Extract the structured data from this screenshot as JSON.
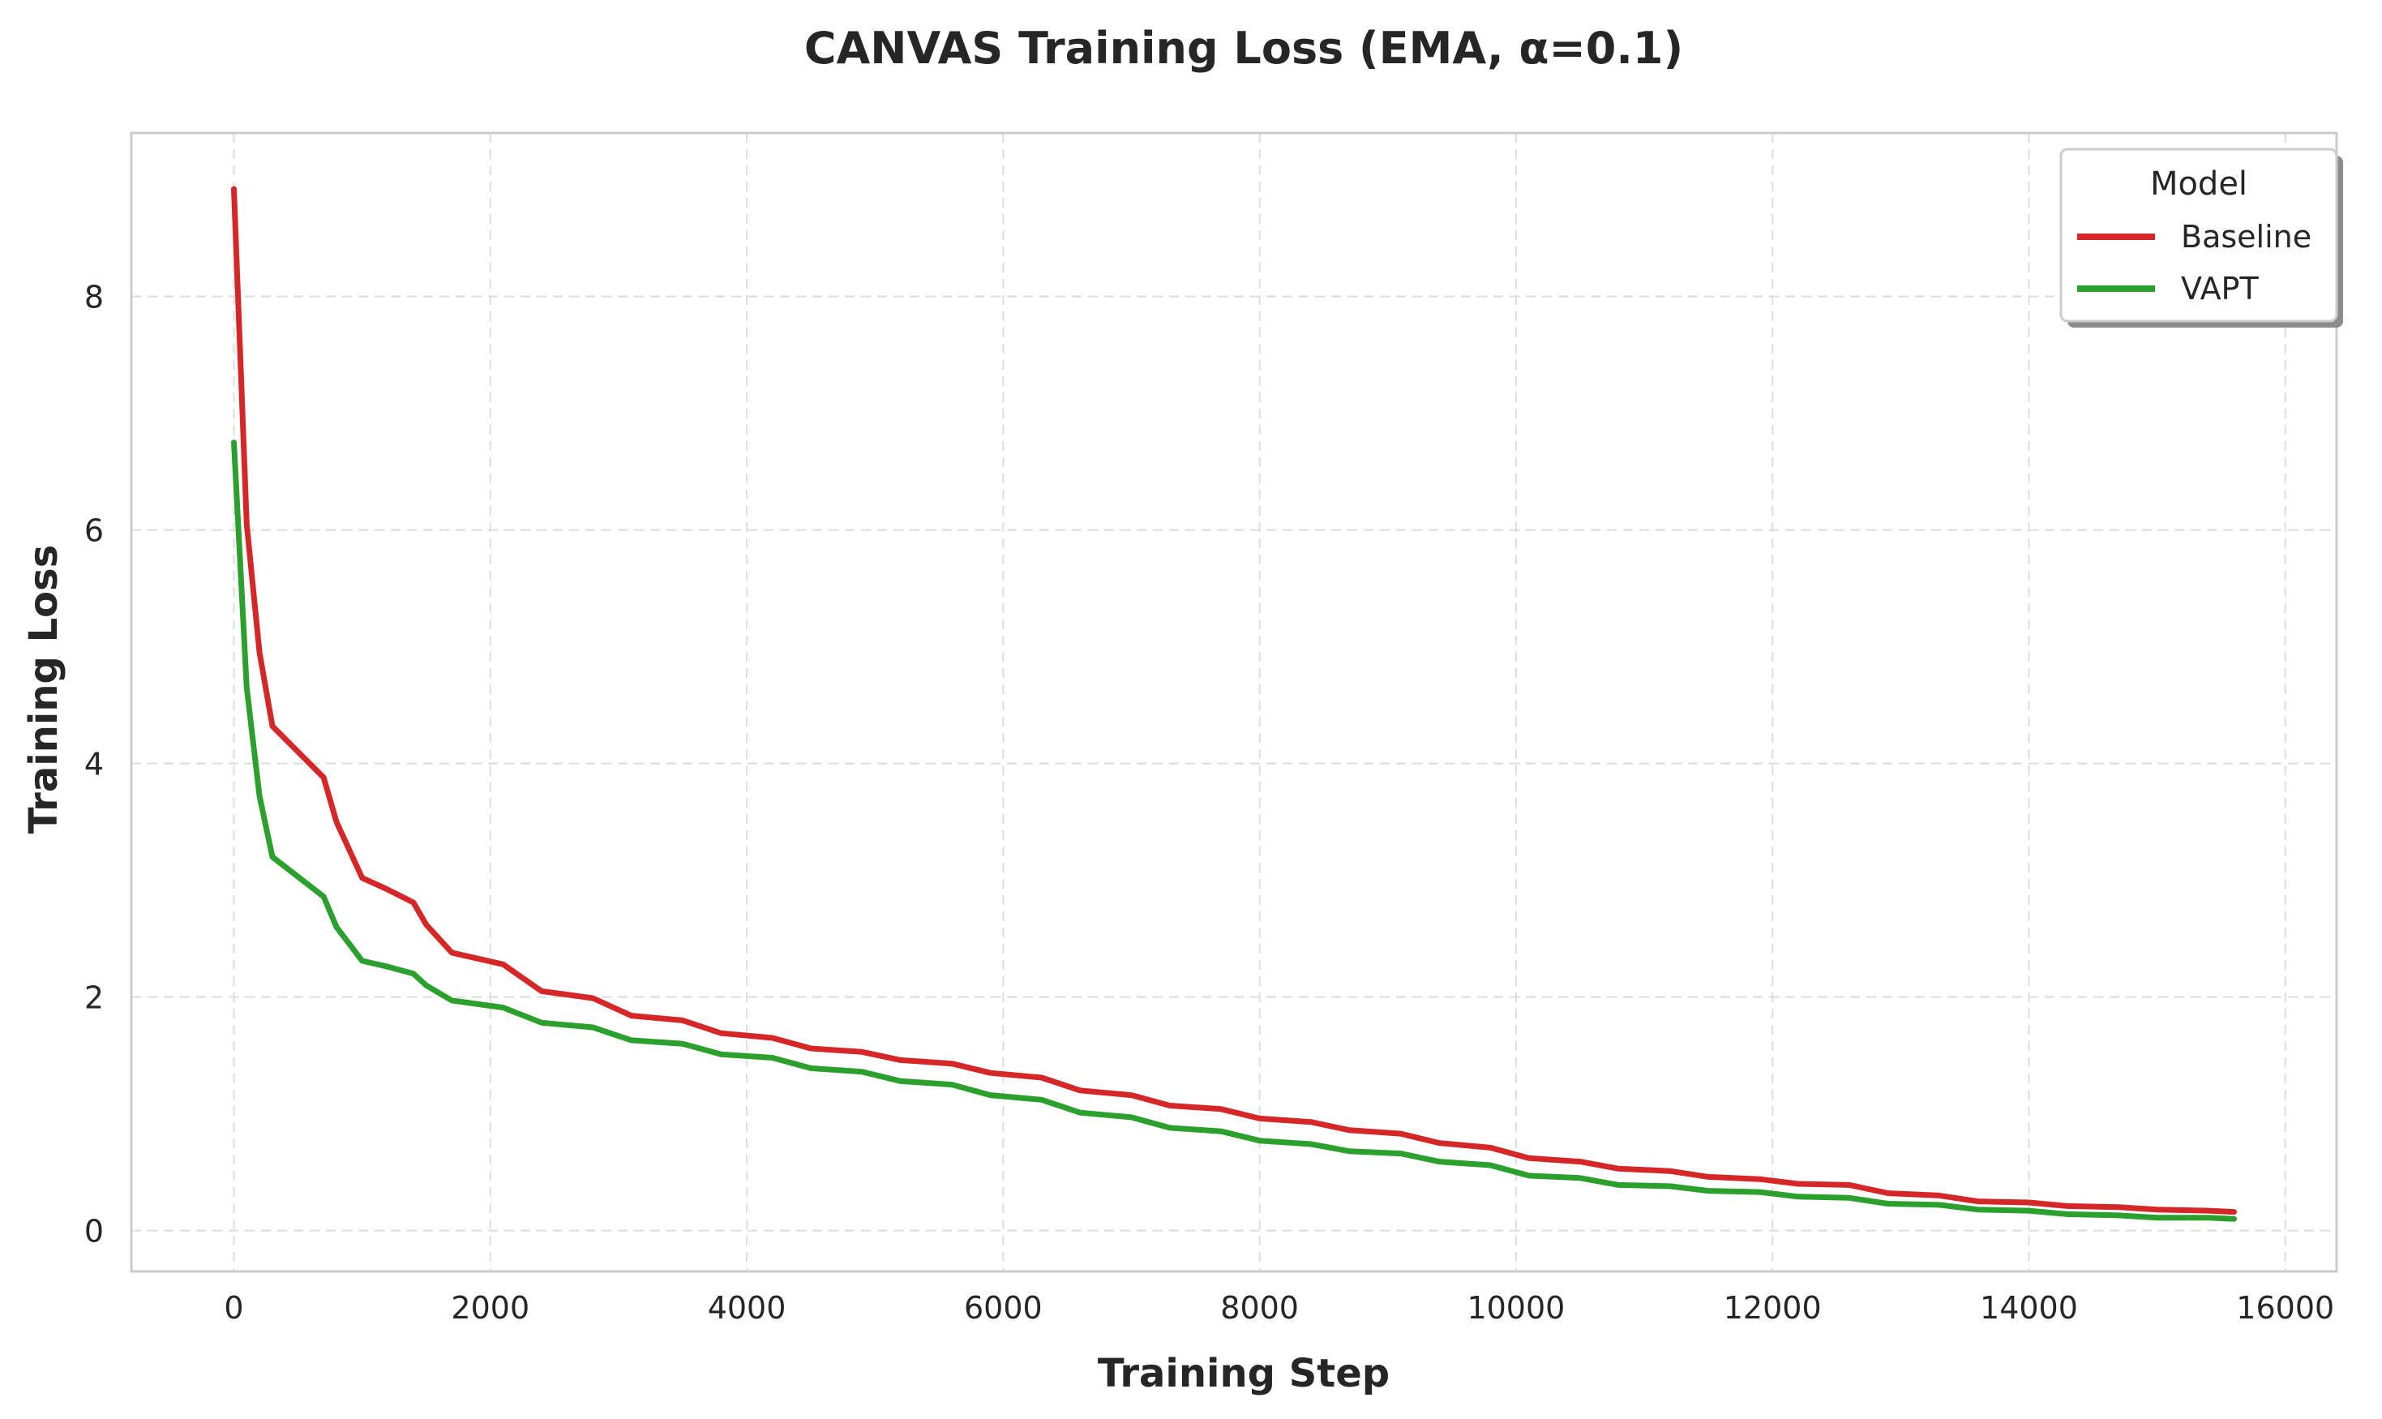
{
  "chart_data": {
    "type": "line",
    "title": "CANVAS Training Loss (EMA, α=0.1)",
    "xlabel": "Training Step",
    "ylabel": "Training Loss",
    "xlim": [
      -800,
      16400
    ],
    "ylim": [
      -0.35,
      9.4
    ],
    "xticks": [
      0,
      2000,
      4000,
      6000,
      8000,
      10000,
      12000,
      14000,
      16000
    ],
    "xtick_labels": [
      "0",
      "2000",
      "4000",
      "6000",
      "8000",
      "10000",
      "12000",
      "14000",
      "16000"
    ],
    "yticks": [
      0,
      2,
      4,
      6,
      8
    ],
    "ytick_labels": [
      "0",
      "2",
      "4",
      "6",
      "8"
    ],
    "grid": true,
    "legend": {
      "title": "Model",
      "position": "top-right"
    },
    "series": [
      {
        "name": "Baseline",
        "color": "#d62728",
        "x": [
          0,
          100,
          200,
          300,
          500,
          700,
          800,
          1000,
          1200,
          1400,
          1500,
          1700,
          2100,
          2400,
          2800,
          3100,
          3500,
          3800,
          4200,
          4500,
          4900,
          5200,
          5600,
          5900,
          6300,
          6600,
          7000,
          7300,
          7700,
          8000,
          8400,
          8700,
          9100,
          9400,
          9800,
          10100,
          10500,
          10800,
          11200,
          11500,
          11900,
          12200,
          12600,
          12900,
          13300,
          13600,
          14000,
          14300,
          14700,
          15000,
          15400,
          15600
        ],
        "y": [
          8.92,
          6.05,
          4.95,
          4.32,
          4.1,
          3.88,
          3.5,
          3.02,
          2.92,
          2.81,
          2.62,
          2.38,
          2.28,
          2.05,
          1.99,
          1.84,
          1.8,
          1.69,
          1.65,
          1.56,
          1.53,
          1.46,
          1.43,
          1.35,
          1.31,
          1.2,
          1.16,
          1.07,
          1.04,
          0.96,
          0.93,
          0.86,
          0.83,
          0.75,
          0.71,
          0.62,
          0.59,
          0.53,
          0.51,
          0.46,
          0.44,
          0.4,
          0.39,
          0.32,
          0.3,
          0.25,
          0.24,
          0.21,
          0.2,
          0.18,
          0.17,
          0.16
        ]
      },
      {
        "name": "VAPT",
        "color": "#2ca02c",
        "x": [
          0,
          100,
          200,
          300,
          500,
          700,
          800,
          1000,
          1200,
          1400,
          1500,
          1700,
          2100,
          2400,
          2800,
          3100,
          3500,
          3800,
          4200,
          4500,
          4900,
          5200,
          5600,
          5900,
          6300,
          6600,
          7000,
          7300,
          7700,
          8000,
          8400,
          8700,
          9100,
          9400,
          9800,
          10100,
          10500,
          10800,
          11200,
          11500,
          11900,
          12200,
          12600,
          12900,
          13300,
          13600,
          14000,
          14300,
          14700,
          15000,
          15400,
          15600
        ],
        "y": [
          6.75,
          4.65,
          3.72,
          3.2,
          3.03,
          2.86,
          2.6,
          2.31,
          2.26,
          2.2,
          2.1,
          1.97,
          1.91,
          1.78,
          1.74,
          1.63,
          1.6,
          1.51,
          1.48,
          1.39,
          1.36,
          1.28,
          1.25,
          1.16,
          1.12,
          1.01,
          0.97,
          0.88,
          0.85,
          0.77,
          0.74,
          0.68,
          0.66,
          0.59,
          0.56,
          0.47,
          0.45,
          0.39,
          0.38,
          0.34,
          0.33,
          0.29,
          0.28,
          0.23,
          0.22,
          0.18,
          0.17,
          0.14,
          0.13,
          0.11,
          0.11,
          0.1
        ]
      }
    ]
  }
}
